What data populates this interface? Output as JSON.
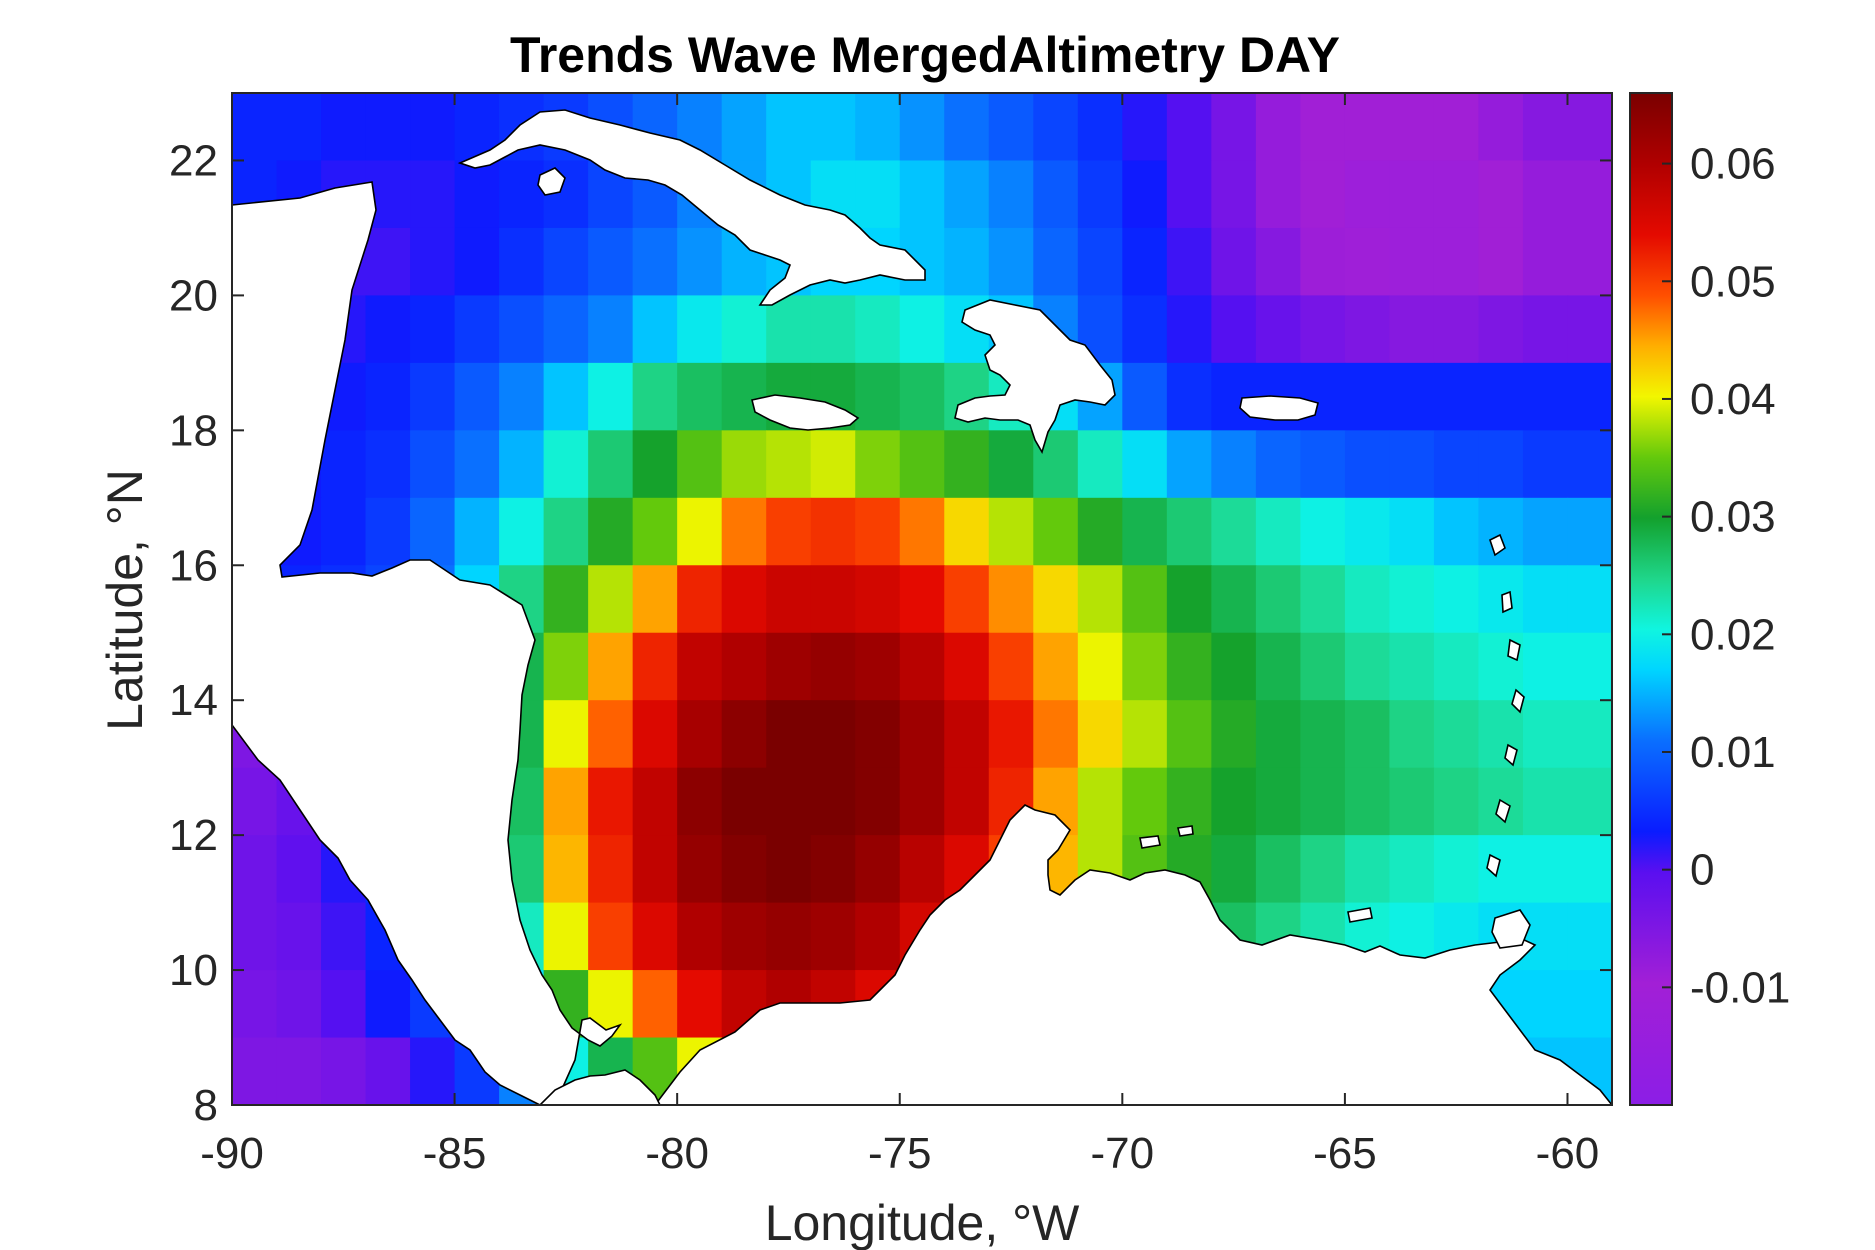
{
  "chart_data": {
    "type": "heatmap",
    "title": "Trends Wave MergedAltimetry DAY",
    "xlabel": "Longitude, °W",
    "ylabel": "Latitude, °N",
    "xlim": [
      -90,
      -59
    ],
    "ylim": [
      8,
      23
    ],
    "xticks": [
      "-90",
      "-85",
      "-80",
      "-75",
      "-70",
      "-65",
      "-60"
    ],
    "yticks": [
      "8",
      "10",
      "12",
      "14",
      "16",
      "18",
      "20",
      "22"
    ],
    "colorbar": {
      "range": [
        -0.02,
        0.066
      ],
      "ticks": [
        "0.06",
        "0.05",
        "0.04",
        "0.03",
        "0.02",
        "0.01",
        "0",
        "-0.01"
      ],
      "colormap": "jet-like, magenta/purple (low) through blue, cyan, green, yellow, red, dark red (high)"
    },
    "grid": false,
    "lon": [
      -89.5,
      -88.5,
      -87.5,
      -86.5,
      -85.5,
      -84.5,
      -83.5,
      -82.5,
      -81.5,
      -80.5,
      -79.5,
      -78.5,
      -77.5,
      -76.5,
      -75.5,
      -74.5,
      -73.5,
      -72.5,
      -71.5,
      -70.5,
      -69.5,
      -68.5,
      -67.5,
      -66.5,
      -65.5,
      -64.5,
      -63.5,
      -62.5,
      -61.5,
      -60.5,
      -59.5
    ],
    "lat": [
      22.5,
      21.5,
      20.5,
      19.5,
      18.5,
      17.5,
      16.5,
      15.5,
      14.5,
      13.5,
      12.5,
      11.5,
      10.5,
      9.5,
      8.5
    ],
    "values": [
      [
        0.004,
        0.004,
        0.003,
        0.003,
        0.003,
        0.004,
        0.005,
        0.006,
        0.008,
        0.01,
        0.012,
        0.014,
        0.016,
        0.016,
        0.015,
        0.013,
        0.011,
        0.009,
        0.007,
        0.005,
        0.002,
        0.0,
        -0.004,
        -0.008,
        -0.01,
        -0.01,
        -0.01,
        -0.01,
        -0.008,
        -0.006,
        -0.006
      ],
      [
        0.004,
        0.003,
        0.002,
        0.002,
        0.002,
        0.003,
        0.004,
        0.005,
        0.007,
        0.009,
        0.012,
        0.014,
        0.016,
        0.018,
        0.018,
        0.016,
        0.014,
        0.012,
        0.009,
        0.006,
        0.003,
        0.0,
        -0.004,
        -0.008,
        -0.01,
        -0.012,
        -0.012,
        -0.012,
        -0.01,
        -0.008,
        -0.008
      ],
      [
        0.002,
        0.002,
        0.001,
        0.001,
        0.002,
        0.003,
        0.005,
        0.007,
        0.009,
        0.011,
        0.013,
        0.015,
        0.016,
        0.017,
        0.017,
        0.016,
        0.015,
        0.013,
        0.01,
        0.007,
        0.004,
        0.001,
        -0.003,
        -0.006,
        -0.009,
        -0.011,
        -0.012,
        -0.012,
        -0.01,
        -0.008,
        -0.008
      ],
      [
        0.002,
        0.002,
        0.002,
        0.003,
        0.004,
        0.006,
        0.008,
        0.01,
        0.012,
        0.016,
        0.019,
        0.021,
        0.023,
        0.023,
        0.022,
        0.02,
        0.018,
        0.016,
        0.012,
        0.008,
        0.005,
        0.002,
        0.0,
        -0.002,
        -0.004,
        -0.005,
        -0.006,
        -0.006,
        -0.005,
        -0.004,
        -0.004
      ],
      [
        0.002,
        0.002,
        0.003,
        0.004,
        0.006,
        0.009,
        0.012,
        0.016,
        0.02,
        0.025,
        0.027,
        0.028,
        0.029,
        0.029,
        0.028,
        0.027,
        0.025,
        0.022,
        0.018,
        0.014,
        0.009,
        0.005,
        0.004,
        0.004,
        0.004,
        0.004,
        0.004,
        0.004,
        0.004,
        0.004,
        0.004
      ],
      [
        0.003,
        0.003,
        0.004,
        0.005,
        0.008,
        0.011,
        0.015,
        0.021,
        0.026,
        0.03,
        0.034,
        0.037,
        0.038,
        0.039,
        0.036,
        0.034,
        0.032,
        0.029,
        0.026,
        0.022,
        0.018,
        0.014,
        0.012,
        0.01,
        0.009,
        0.008,
        0.008,
        0.007,
        0.007,
        0.006,
        0.006
      ],
      [
        0.003,
        0.003,
        0.004,
        0.006,
        0.01,
        0.015,
        0.02,
        0.025,
        0.031,
        0.035,
        0.04,
        0.047,
        0.05,
        0.051,
        0.05,
        0.047,
        0.042,
        0.038,
        0.035,
        0.031,
        0.028,
        0.026,
        0.024,
        0.022,
        0.02,
        0.019,
        0.018,
        0.016,
        0.015,
        0.014,
        0.014
      ],
      [
        0.003,
        0.004,
        0.005,
        0.007,
        0.011,
        0.017,
        0.025,
        0.032,
        0.038,
        0.045,
        0.052,
        0.055,
        0.057,
        0.057,
        0.056,
        0.054,
        0.05,
        0.046,
        0.042,
        0.038,
        0.034,
        0.03,
        0.028,
        0.026,
        0.024,
        0.022,
        0.021,
        0.02,
        0.019,
        0.018,
        0.018
      ],
      [
        0.003,
        0.004,
        0.006,
        0.008,
        0.012,
        0.018,
        0.028,
        0.036,
        0.045,
        0.052,
        0.058,
        0.06,
        0.062,
        0.063,
        0.062,
        0.059,
        0.055,
        0.05,
        0.045,
        0.04,
        0.036,
        0.032,
        0.03,
        0.028,
        0.026,
        0.024,
        0.023,
        0.022,
        0.021,
        0.02,
        0.02
      ],
      [
        -0.005,
        -0.004,
        0.001,
        0.004,
        0.008,
        0.016,
        0.028,
        0.04,
        0.048,
        0.055,
        0.061,
        0.064,
        0.066,
        0.066,
        0.065,
        0.062,
        0.058,
        0.053,
        0.047,
        0.042,
        0.038,
        0.034,
        0.031,
        0.029,
        0.028,
        0.027,
        0.025,
        0.024,
        0.023,
        0.022,
        0.022
      ],
      [
        -0.004,
        -0.002,
        0.002,
        0.006,
        0.01,
        0.015,
        0.027,
        0.045,
        0.053,
        0.058,
        0.064,
        0.066,
        0.066,
        0.066,
        0.065,
        0.062,
        0.058,
        0.052,
        0.045,
        0.038,
        0.035,
        0.032,
        0.03,
        0.029,
        0.028,
        0.027,
        0.026,
        0.025,
        0.024,
        0.023,
        0.023
      ],
      [
        -0.003,
        -0.001,
        0.002,
        0.005,
        0.008,
        0.014,
        0.026,
        0.044,
        0.052,
        0.058,
        0.063,
        0.065,
        0.066,
        0.065,
        0.063,
        0.059,
        0.055,
        0.05,
        0.044,
        0.038,
        0.034,
        0.031,
        0.029,
        0.027,
        0.025,
        0.023,
        0.022,
        0.021,
        0.02,
        0.02,
        0.02
      ],
      [
        -0.003,
        -0.002,
        0.001,
        0.004,
        0.008,
        0.012,
        0.022,
        0.04,
        0.05,
        0.055,
        0.06,
        0.062,
        0.063,
        0.062,
        0.06,
        0.056,
        0.052,
        0.047,
        0.041,
        0.035,
        0.032,
        0.029,
        0.027,
        0.025,
        0.023,
        0.021,
        0.02,
        0.019,
        0.018,
        0.018,
        0.018
      ],
      [
        -0.004,
        -0.003,
        0.0,
        0.003,
        0.006,
        0.01,
        0.018,
        0.032,
        0.04,
        0.048,
        0.054,
        0.058,
        0.06,
        0.058,
        0.055,
        0.052,
        0.048,
        0.043,
        0.037,
        0.032,
        0.029,
        0.026,
        0.024,
        0.022,
        0.02,
        0.019,
        0.018,
        0.017,
        0.017,
        0.017,
        0.017
      ],
      [
        -0.005,
        -0.005,
        -0.004,
        -0.002,
        0.002,
        0.006,
        0.012,
        0.02,
        0.028,
        0.034,
        0.04,
        0.046,
        0.05,
        0.048,
        0.045,
        0.042,
        0.038,
        0.034,
        0.03,
        0.027,
        0.024,
        0.022,
        0.02,
        0.019,
        0.018,
        0.017,
        0.016,
        0.016,
        0.016,
        0.016,
        0.016
      ]
    ],
    "land_regions": [
      "Central America",
      "South America",
      "Cuba",
      "Hispaniola",
      "Jamaica",
      "Puerto Rico",
      "Lesser Antilles",
      "Yucatán"
    ]
  }
}
